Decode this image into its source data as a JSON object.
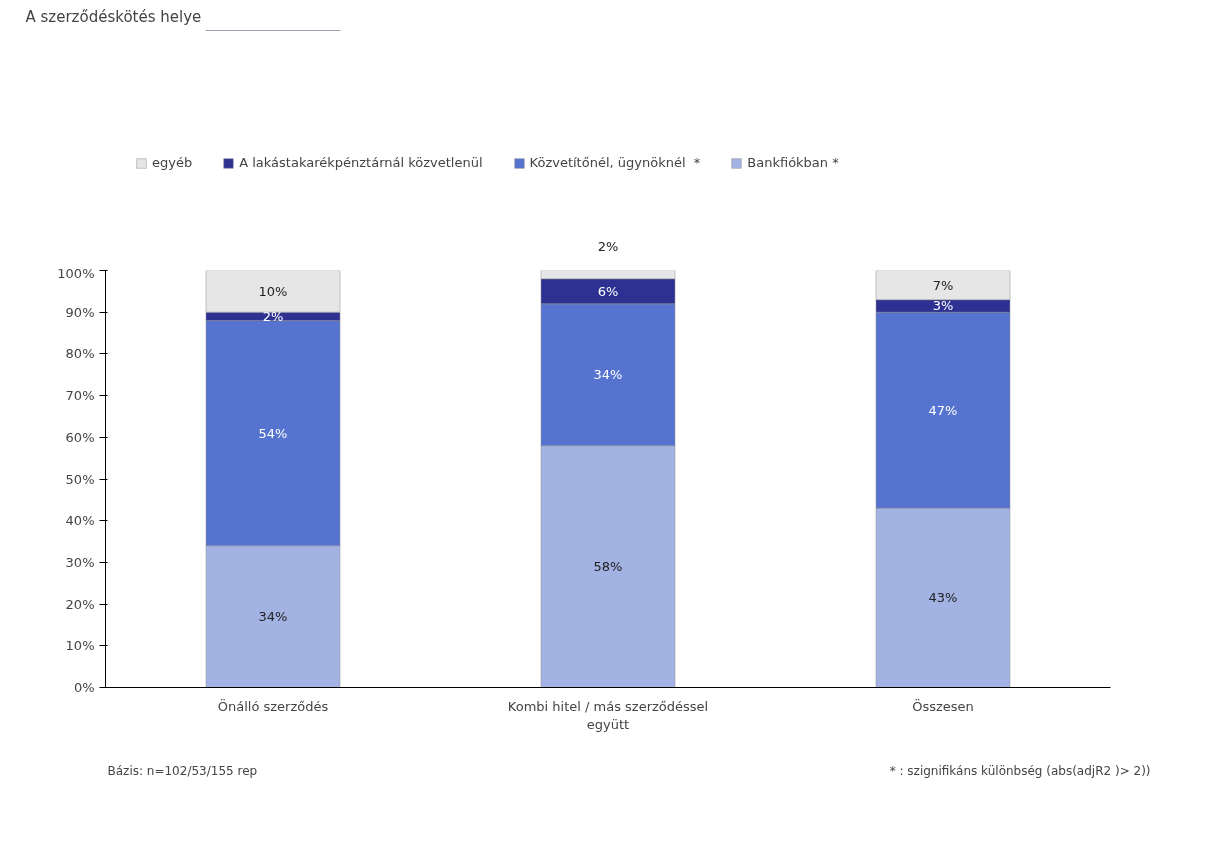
{
  "chart_data": {
    "type": "bar",
    "title": "A szerződéskötés helye",
    "stacked": true,
    "legend": "top",
    "grid": false,
    "categories": [
      "Önálló szerződés",
      "Kombi hitel / más szerződéssel együtt",
      "Összesen"
    ],
    "series": [
      {
        "name": "Bankfiókban *",
        "color": "#a2b2e2",
        "values": [
          34,
          58,
          43
        ],
        "value_labels": [
          "34%",
          "58%",
          "43%"
        ]
      },
      {
        "name": "Közvetítőnél, ügynöknél  *",
        "color": "#5674cf",
        "values": [
          54,
          34,
          47
        ],
        "value_labels": [
          "54%",
          "34%",
          "47%"
        ]
      },
      {
        "name": "A lakástakarékpénztárnál közvetlenül",
        "color": "#2e3192",
        "values": [
          2,
          6,
          3
        ],
        "value_labels": [
          "2%",
          "6%",
          "3%"
        ]
      },
      {
        "name": "egyéb",
        "color": "#e6e6e6",
        "values": [
          10,
          2,
          7
        ],
        "value_labels": [
          "10%",
          "2%",
          "7%"
        ]
      }
    ],
    "ylim": [
      0,
      100
    ],
    "yticks": [
      {
        "value": 0,
        "label": "0%"
      },
      {
        "value": 10,
        "label": "10%"
      },
      {
        "value": 20,
        "label": "20%"
      },
      {
        "value": 30,
        "label": "30%"
      },
      {
        "value": 40,
        "label": "40%"
      },
      {
        "value": 50,
        "label": "50%"
      },
      {
        "value": 60,
        "label": "60%"
      },
      {
        "value": 70,
        "label": "70%"
      },
      {
        "value": 80,
        "label": "80%"
      },
      {
        "value": 90,
        "label": "90%"
      },
      {
        "value": 100,
        "label": "100%"
      }
    ],
    "annotations": [
      "Bázis: n=102/53/155  rep",
      "* : szignifikáns különbség (abs(adjR2 )> 2))"
    ]
  }
}
